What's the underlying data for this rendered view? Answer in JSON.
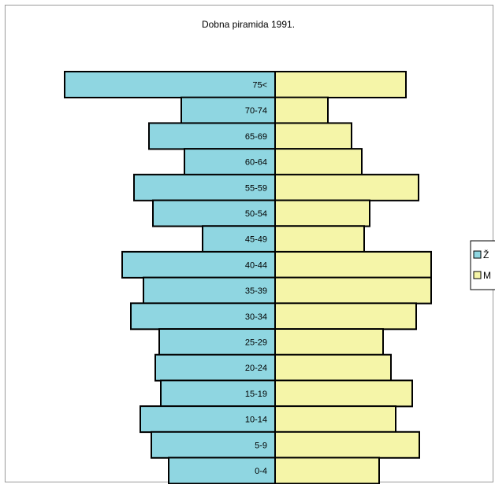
{
  "chart_data": {
    "type": "bar",
    "orientation": "horizontal-pyramid",
    "title": "Dobna piramida 1991.",
    "categories": [
      "75<",
      "70-74",
      "65-69",
      "60-64",
      "55-59",
      "50-54",
      "45-49",
      "40-44",
      "35-39",
      "30-34",
      "25-29",
      "20-24",
      "15-19",
      "10-14",
      "5-9",
      "0-4"
    ],
    "series": [
      {
        "name": "Ž",
        "color": "#8fd6e1",
        "side": "left",
        "values": [
          267,
          119,
          160,
          115,
          179,
          155,
          92,
          194,
          167,
          183,
          147,
          152,
          145,
          171,
          157,
          135
        ]
      },
      {
        "name": "M",
        "color": "#f5f5a8",
        "side": "right",
        "values": [
          166,
          67,
          97,
          110,
          182,
          120,
          113,
          198,
          198,
          179,
          137,
          147,
          174,
          153,
          183,
          132
        ]
      }
    ],
    "legend_position": "right",
    "grid": false
  }
}
